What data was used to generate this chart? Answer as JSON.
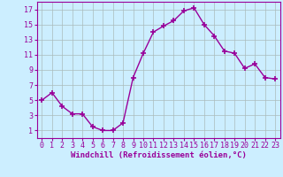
{
  "x": [
    0,
    1,
    2,
    3,
    4,
    5,
    6,
    7,
    8,
    9,
    10,
    11,
    12,
    13,
    14,
    15,
    16,
    17,
    18,
    19,
    20,
    21,
    22,
    23
  ],
  "y": [
    5.0,
    6.0,
    4.2,
    3.2,
    3.2,
    1.5,
    1.0,
    1.0,
    2.0,
    8.0,
    11.2,
    14.0,
    14.8,
    15.5,
    16.8,
    17.2,
    15.0,
    13.5,
    11.5,
    11.2,
    9.2,
    9.8,
    8.0,
    7.8
  ],
  "line_color": "#990099",
  "marker": "+",
  "marker_size": 4,
  "marker_lw": 1.2,
  "bg_color": "#cceeff",
  "grid_color": "#aabbbb",
  "xlabel": "Windchill (Refroidissement éolien,°C)",
  "ylabel_ticks": [
    1,
    3,
    5,
    7,
    9,
    11,
    13,
    15,
    17
  ],
  "xtick_labels": [
    "0",
    "1",
    "2",
    "3",
    "4",
    "5",
    "6",
    "7",
    "8",
    "9",
    "10",
    "11",
    "12",
    "13",
    "14",
    "15",
    "16",
    "17",
    "18",
    "19",
    "20",
    "21",
    "22",
    "23"
  ],
  "ylim": [
    0.0,
    18.0
  ],
  "xlim": [
    -0.5,
    23.5
  ],
  "xlabel_fontsize": 6.5,
  "tick_fontsize": 6.0
}
